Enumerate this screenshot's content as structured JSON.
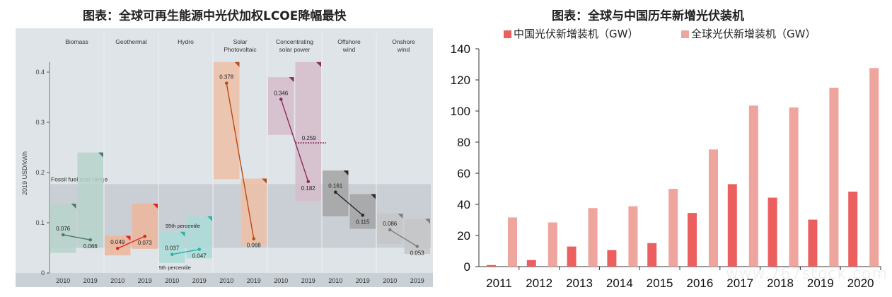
{
  "title_left": "图表：全球可再生能源中光伏加权LCOE降幅最快",
  "title_right": "图表：全球与中国历年新增光伏装机",
  "watermark": "www.767stock.com",
  "chart_data": [
    {
      "type": "range-bar",
      "ylabel": "2019 USD/kWh",
      "ylim": [
        0,
        0.42
      ],
      "yticks": [
        "0",
        "0.1",
        "0.2",
        "0.3",
        "0.4"
      ],
      "fossil_range": {
        "label": "Fossil fuel cost range",
        "low": 0.05,
        "high": 0.177
      },
      "annotations": {
        "p95": "95th percentile",
        "p5": "5th percentile"
      },
      "groups": [
        {
          "name": [
            "Biomass"
          ],
          "color": "#b7d3cb",
          "dot": "#4d7a6c",
          "bars": [
            {
              "year": "2010",
              "low": 0.04,
              "high": 0.138,
              "value": 0.076,
              "label": "0.076"
            },
            {
              "year": "2019",
              "low": 0.05,
              "high": 0.24,
              "value": 0.066,
              "label": "0.066"
            }
          ]
        },
        {
          "name": [
            "Geothermal"
          ],
          "color": "#efb69a",
          "dot": "#e2231a",
          "bars": [
            {
              "year": "2010",
              "low": 0.035,
              "high": 0.074,
              "value": 0.049,
              "label": "0.049"
            },
            {
              "year": "2019",
              "low": 0.048,
              "high": 0.138,
              "value": 0.073,
              "label": "0.073"
            }
          ]
        },
        {
          "name": [
            "Hydro"
          ],
          "color": "#acdcd8",
          "dot": "#2ab3a9",
          "bars": [
            {
              "year": "2010",
              "low": 0.02,
              "high": 0.082,
              "value": 0.037,
              "label": "0.037"
            },
            {
              "year": "2019",
              "low": 0.029,
              "high": 0.113,
              "value": 0.047,
              "label": "0.047"
            }
          ]
        },
        {
          "name": [
            "Solar",
            "Photovoltaic"
          ],
          "color": "#efbfa6",
          "dot": "#b84a14",
          "bars": [
            {
              "year": "2010",
              "low": 0.187,
              "high": 0.42,
              "value": 0.378,
              "label": "0.378"
            },
            {
              "year": "2019",
              "low": 0.055,
              "high": 0.188,
              "value": 0.068,
              "label": "0.068"
            }
          ]
        },
        {
          "name": [
            "Concentrating",
            "solar power"
          ],
          "color": "#d6bccb",
          "dot": "#8b2a62",
          "bars": [
            {
              "year": "2010",
              "low": 0.275,
              "high": 0.39,
              "value": 0.346,
              "label": "0.346"
            },
            {
              "year": "2019",
              "low": 0.143,
              "high": 0.42,
              "value": 0.182,
              "label": "0.182"
            }
          ],
          "extra": {
            "value": 0.259,
            "label": "0.259"
          }
        },
        {
          "name": [
            "Offshore",
            "wind"
          ],
          "color": "#a3a3a3",
          "dot": "#2b2b2b",
          "bars": [
            {
              "year": "2010",
              "low": 0.113,
              "high": 0.204,
              "value": 0.161,
              "label": "0.161"
            },
            {
              "year": "2019",
              "low": 0.088,
              "high": 0.157,
              "value": 0.115,
              "label": "0.115"
            }
          ]
        },
        {
          "name": [
            "Onshore",
            "wind"
          ],
          "color": "#c6c6c6",
          "dot": "#7d7d7d",
          "bars": [
            {
              "year": "2010",
              "low": 0.058,
              "high": 0.118,
              "value": 0.086,
              "label": "0.086"
            },
            {
              "year": "2019",
              "low": 0.038,
              "high": 0.108,
              "value": 0.053,
              "label": "0.053"
            }
          ]
        }
      ]
    },
    {
      "type": "bar",
      "categories": [
        "2011",
        "2012",
        "2013",
        "2014",
        "2015",
        "2016",
        "2017",
        "2018",
        "2019",
        "2020"
      ],
      "series": [
        {
          "name": "中国光伏新增装机（GW）",
          "color": "#eb5f5f",
          "values": [
            1.0,
            4.2,
            12.9,
            10.6,
            15.1,
            34.5,
            53.0,
            44.3,
            30.2,
            48.2
          ]
        },
        {
          "name": "全球光伏新增装机（GW）",
          "color": "#eea59d",
          "values": [
            31.6,
            28.4,
            37.6,
            38.8,
            50.0,
            75.3,
            103.5,
            102.3,
            115.0,
            127.6
          ]
        }
      ],
      "ylim": [
        0,
        140
      ],
      "yticks": [
        "0",
        "20",
        "40",
        "60",
        "80",
        "100",
        "120",
        "140"
      ]
    }
  ]
}
